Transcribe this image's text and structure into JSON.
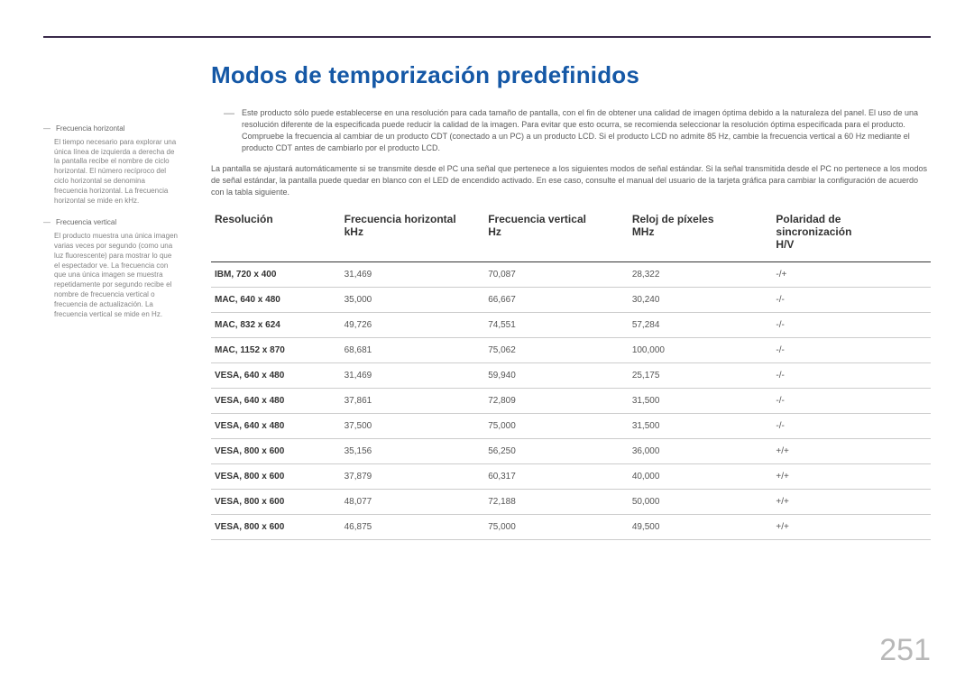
{
  "page_number": "251",
  "title": "Modos de temporización predefinidos",
  "title_color": "#1558a6",
  "rule_color": "#3a2a4a",
  "sidebar": {
    "items": [
      {
        "term": "Frecuencia horizontal",
        "body": "El tiempo necesario para explorar una única línea de izquierda a derecha de la pantalla recibe el nombre de ciclo horizontal. El número recíproco del ciclo horizontal se denomina frecuencia horizontal. La frecuencia horizontal se mide en kHz."
      },
      {
        "term": "Frecuencia vertical",
        "body": "El producto muestra una única imagen varias veces por segundo (como una luz fluorescente) para mostrar lo que el espectador ve. La frecuencia con que una única imagen se muestra repetidamente por segundo recibe el nombre de frecuencia vertical o frecuencia de actualización. La frecuencia vertical se mide en Hz."
      }
    ]
  },
  "intro": {
    "p1a": "Este producto sólo puede establecerse en una resolución para cada tamaño de pantalla, con el fin de obtener una calidad de imagen óptima debido a la naturaleza del panel. El uso de una resolución diferente de la especificada puede reducir la calidad de la imagen. Para evitar que esto ocurra, se recomienda seleccionar la resolución óptima especificada para el producto.",
    "p1b": "Compruebe la frecuencia al cambiar de un producto CDT (conectado a un PC) a un producto LCD. Si el producto LCD no admite 85 Hz, cambie la frecuencia vertical a 60 Hz mediante el producto CDT antes de cambiarlo por el producto LCD.",
    "p2": "La pantalla se ajustará automáticamente si se transmite desde el PC una señal que pertenece a los siguientes modos de señal estándar. Si la señal transmitida desde el PC no pertenece a los modos de señal estándar, la pantalla puede quedar en blanco con el LED de encendido activado. En ese caso, consulte el manual del usuario de la tarjeta gráfica para cambiar la configuración de acuerdo con la tabla siguiente."
  },
  "table": {
    "type": "table",
    "head_border_color": "#333333",
    "row_border_color": "#cccccc",
    "columns": [
      {
        "h1": "Resolución",
        "h2": ""
      },
      {
        "h1": "Frecuencia horizontal",
        "h2": "kHz"
      },
      {
        "h1": "Frecuencia vertical",
        "h2": "Hz"
      },
      {
        "h1": "Reloj de píxeles",
        "h2": "MHz"
      },
      {
        "h1": "Polaridad de",
        "h2": "sincronización",
        "h3": "H/V"
      }
    ],
    "rows": [
      [
        "IBM, 720 x 400",
        "31,469",
        "70,087",
        "28,322",
        "-/+"
      ],
      [
        "MAC, 640 x 480",
        "35,000",
        "66,667",
        "30,240",
        "-/-"
      ],
      [
        "MAC, 832 x 624",
        "49,726",
        "74,551",
        "57,284",
        "-/-"
      ],
      [
        "MAC, 1152 x 870",
        "68,681",
        "75,062",
        "100,000",
        "-/-"
      ],
      [
        "VESA, 640 x 480",
        "31,469",
        "59,940",
        "25,175",
        "-/-"
      ],
      [
        "VESA, 640 x 480",
        "37,861",
        "72,809",
        "31,500",
        "-/-"
      ],
      [
        "VESA, 640 x 480",
        "37,500",
        "75,000",
        "31,500",
        "-/-"
      ],
      [
        "VESA, 800 x 600",
        "35,156",
        "56,250",
        "36,000",
        "+/+"
      ],
      [
        "VESA, 800 x 600",
        "37,879",
        "60,317",
        "40,000",
        "+/+"
      ],
      [
        "VESA, 800 x 600",
        "48,077",
        "72,188",
        "50,000",
        "+/+"
      ],
      [
        "VESA, 800 x 600",
        "46,875",
        "75,000",
        "49,500",
        "+/+"
      ]
    ]
  }
}
